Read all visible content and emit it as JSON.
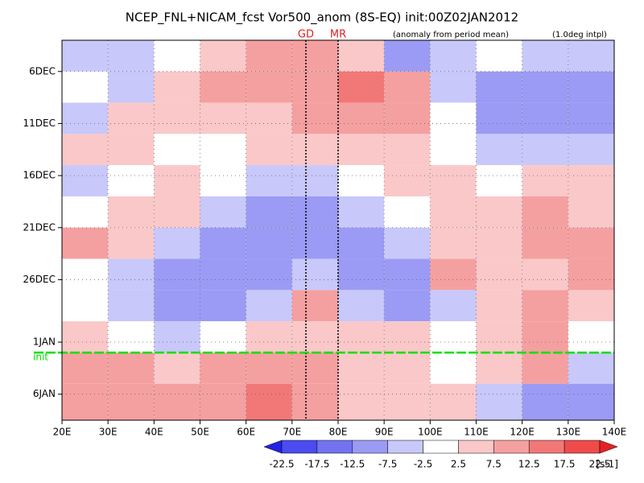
{
  "chart_data": {
    "type": "heatmap",
    "title": "NCEP_FNL+NICAM_fcst Vor500_anom (8S-EQ) init:00Z02JAN2012",
    "subtitle": "(anomaly from period mean)",
    "note": "(1.0deg intpl)",
    "x_edges": [
      20,
      30,
      40,
      50,
      60,
      70,
      80,
      90,
      100,
      110,
      120,
      130,
      140
    ],
    "y_edges": [
      3,
      6,
      9,
      12,
      15,
      18,
      21,
      24,
      27,
      30,
      33,
      36,
      39.5
    ],
    "values": [
      [
        -5,
        -5,
        0,
        5,
        10,
        12,
        5,
        -10,
        -5,
        0,
        -5,
        -5
      ],
      [
        0,
        -5,
        5,
        10,
        10,
        12,
        15,
        10,
        -5,
        -10,
        -12,
        -10
      ],
      [
        -5,
        5,
        5,
        5,
        5,
        10,
        10,
        12,
        0,
        -10,
        -12,
        -10
      ],
      [
        5,
        5,
        0,
        0,
        5,
        5,
        5,
        5,
        0,
        -5,
        -5,
        -5
      ],
      [
        -5,
        0,
        5,
        0,
        -5,
        -5,
        0,
        5,
        5,
        0,
        5,
        5
      ],
      [
        0,
        5,
        5,
        -5,
        -10,
        -12,
        -5,
        0,
        5,
        5,
        10,
        5
      ],
      [
        10,
        5,
        -5,
        -10,
        -12,
        -10,
        -10,
        -5,
        5,
        5,
        10,
        10
      ],
      [
        0,
        -5,
        -10,
        -10,
        -10,
        -5,
        -10,
        -12,
        10,
        5,
        5,
        10
      ],
      [
        0,
        -5,
        -12,
        -10,
        -5,
        10,
        -5,
        -10,
        -5,
        5,
        10,
        5
      ],
      [
        5,
        0,
        -5,
        0,
        5,
        5,
        5,
        5,
        0,
        5,
        10,
        0
      ],
      [
        10,
        10,
        5,
        10,
        12,
        10,
        5,
        5,
        0,
        5,
        10,
        -5
      ],
      [
        10,
        10,
        12,
        10,
        15,
        10,
        5,
        5,
        5,
        -5,
        -10,
        -10
      ]
    ],
    "xlim": [
      20,
      140
    ],
    "xticks": [
      {
        "value": 20,
        "label": "20E"
      },
      {
        "value": 30,
        "label": "30E"
      },
      {
        "value": 40,
        "label": "40E"
      },
      {
        "value": 50,
        "label": "50E"
      },
      {
        "value": 60,
        "label": "60E"
      },
      {
        "value": 70,
        "label": "70E"
      },
      {
        "value": 80,
        "label": "80E"
      },
      {
        "value": 90,
        "label": "90E"
      },
      {
        "value": 100,
        "label": "100E"
      },
      {
        "value": 110,
        "label": "110E"
      },
      {
        "value": 120,
        "label": "120E"
      },
      {
        "value": 130,
        "label": "130E"
      },
      {
        "value": 140,
        "label": "140E"
      }
    ],
    "ylim": [
      3,
      39.5
    ],
    "yticks": [
      {
        "value": 6,
        "label": "6DEC"
      },
      {
        "value": 11,
        "label": "11DEC"
      },
      {
        "value": 16,
        "label": "16DEC"
      },
      {
        "value": 21,
        "label": "21DEC"
      },
      {
        "value": 26,
        "label": "26DEC"
      },
      {
        "value": 32,
        "label": "1JAN"
      },
      {
        "value": 37,
        "label": "6JAN"
      }
    ],
    "init_line": {
      "label": "init",
      "value": 33,
      "color": "#00e000"
    },
    "markers": [
      {
        "label": "GD",
        "x": 73
      },
      {
        "label": "MR",
        "x": 80
      }
    ],
    "levels": [
      -22.5,
      -17.5,
      -12.5,
      -7.5,
      -2.5,
      2.5,
      7.5,
      12.5,
      17.5,
      22.5
    ],
    "colors": [
      "#2323e6",
      "#4b4bf0",
      "#7373f2",
      "#9b9bf5",
      "#c8c8fa",
      "#ffffff",
      "#fac8c8",
      "#f5a0a0",
      "#f27878",
      "#f04b4b",
      "#e62323"
    ],
    "unit": "[s-1]",
    "grid": true
  }
}
